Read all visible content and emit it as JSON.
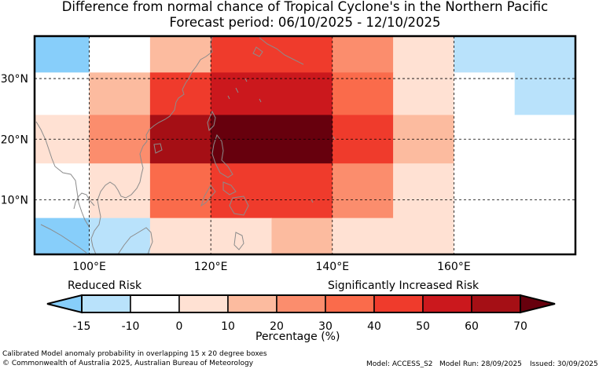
{
  "title": {
    "line1": "Difference from normal chance of Tropical Cyclone's in the Northern Pacific",
    "line2": "Forecast period: 06/10/2025 - 12/10/2025"
  },
  "map": {
    "lon_range": [
      91,
      180
    ],
    "lat_range": [
      1,
      37
    ],
    "lon_ticks": [
      {
        "value": 100,
        "label": "100°E"
      },
      {
        "value": 120,
        "label": "120°E"
      },
      {
        "value": 140,
        "label": "140°E"
      },
      {
        "value": 160,
        "label": "160°E"
      }
    ],
    "lat_ticks": [
      {
        "value": 10,
        "label": "10°N"
      },
      {
        "value": 20,
        "label": "20°N"
      },
      {
        "value": 30,
        "label": "30°N"
      }
    ],
    "grid_note": "15 x 20 degree boxes, overlapping",
    "colorbar_levels": [
      -15,
      -10,
      0,
      10,
      20,
      30,
      40,
      50,
      60,
      70
    ],
    "level_colors": {
      "below_-15": "#87cefa",
      "-15": "#b9e2fb",
      "-10": "#ffffff",
      "0": "#ffe1d3",
      "10": "#fcbb9f",
      "20": "#fb8d6d",
      "30": "#fa6b4b",
      "40": "#ef3b2c",
      "50": "#cb181d",
      "60": "#a50f15",
      "70": "#67000d"
    },
    "cells": [
      {
        "lon": [
          91,
          100
        ],
        "lat": [
          31,
          37
        ],
        "value": -20
      },
      {
        "lon": [
          100,
          110
        ],
        "lat": [
          31,
          37
        ],
        "value": -5
      },
      {
        "lon": [
          110,
          120
        ],
        "lat": [
          31,
          37
        ],
        "value": 15
      },
      {
        "lon": [
          120,
          140
        ],
        "lat": [
          31,
          37
        ],
        "value": 45
      },
      {
        "lon": [
          140,
          150
        ],
        "lat": [
          31,
          37
        ],
        "value": 25
      },
      {
        "lon": [
          150,
          160
        ],
        "lat": [
          31,
          37
        ],
        "value": 5
      },
      {
        "lon": [
          160,
          180
        ],
        "lat": [
          31,
          37
        ],
        "value": -12
      },
      {
        "lon": [
          91,
          100
        ],
        "lat": [
          24,
          31
        ],
        "value": -5
      },
      {
        "lon": [
          100,
          110
        ],
        "lat": [
          24,
          31
        ],
        "value": 15
      },
      {
        "lon": [
          110,
          120
        ],
        "lat": [
          24,
          31
        ],
        "value": 45
      },
      {
        "lon": [
          120,
          140
        ],
        "lat": [
          24,
          31
        ],
        "value": 55
      },
      {
        "lon": [
          140,
          150
        ],
        "lat": [
          24,
          31
        ],
        "value": 35
      },
      {
        "lon": [
          150,
          160
        ],
        "lat": [
          24,
          31
        ],
        "value": 5
      },
      {
        "lon": [
          160,
          170
        ],
        "lat": [
          24,
          31
        ],
        "value": -5
      },
      {
        "lon": [
          170,
          180
        ],
        "lat": [
          24,
          31
        ],
        "value": -12
      },
      {
        "lon": [
          91,
          100
        ],
        "lat": [
          16,
          24
        ],
        "value": 5
      },
      {
        "lon": [
          100,
          110
        ],
        "lat": [
          16,
          24
        ],
        "value": 25
      },
      {
        "lon": [
          110,
          120
        ],
        "lat": [
          16,
          24
        ],
        "value": 65
      },
      {
        "lon": [
          120,
          140
        ],
        "lat": [
          16,
          24
        ],
        "value": 75
      },
      {
        "lon": [
          140,
          150
        ],
        "lat": [
          16,
          24
        ],
        "value": 45
      },
      {
        "lon": [
          150,
          160
        ],
        "lat": [
          16,
          24
        ],
        "value": 15
      },
      {
        "lon": [
          160,
          180
        ],
        "lat": [
          16,
          24
        ],
        "value": -5
      },
      {
        "lon": [
          91,
          100
        ],
        "lat": [
          7,
          16
        ],
        "value": -5
      },
      {
        "lon": [
          100,
          110
        ],
        "lat": [
          7,
          16
        ],
        "value": 5
      },
      {
        "lon": [
          110,
          120
        ],
        "lat": [
          7,
          16
        ],
        "value": 35
      },
      {
        "lon": [
          120,
          140
        ],
        "lat": [
          7,
          16
        ],
        "value": 45
      },
      {
        "lon": [
          140,
          150
        ],
        "lat": [
          7,
          16
        ],
        "value": 25
      },
      {
        "lon": [
          150,
          160
        ],
        "lat": [
          7,
          16
        ],
        "value": 5
      },
      {
        "lon": [
          160,
          180
        ],
        "lat": [
          7,
          16
        ],
        "value": -5
      },
      {
        "lon": [
          91,
          100
        ],
        "lat": [
          1,
          7
        ],
        "value": -20
      },
      {
        "lon": [
          100,
          110
        ],
        "lat": [
          1,
          7
        ],
        "value": -12
      },
      {
        "lon": [
          110,
          130
        ],
        "lat": [
          1,
          7
        ],
        "value": 5
      },
      {
        "lon": [
          130,
          140
        ],
        "lat": [
          1,
          7
        ],
        "value": 15
      },
      {
        "lon": [
          140,
          160
        ],
        "lat": [
          1,
          7
        ],
        "value": 5
      },
      {
        "lon": [
          160,
          180
        ],
        "lat": [
          1,
          7
        ],
        "value": -5
      }
    ]
  },
  "colorbar": {
    "reduced_label": "Reduced Risk",
    "increased_label": "Significantly Increased Risk",
    "tick_labels": [
      "-15",
      "-10",
      "0",
      "10",
      "20",
      "30",
      "40",
      "50",
      "60",
      "70"
    ],
    "axis_label": "Percentage (%)"
  },
  "footer": {
    "note": "Calibrated Model anomaly probability in overlapping 15 x 20 degree boxes",
    "copyright": "© Commonwealth of Australia 2025, Australian Bureau of Meteorology",
    "model": "Model: ACCESS_S2",
    "model_run": "Model Run: 28/09/2025",
    "issued": "Issued: 30/09/2025"
  }
}
